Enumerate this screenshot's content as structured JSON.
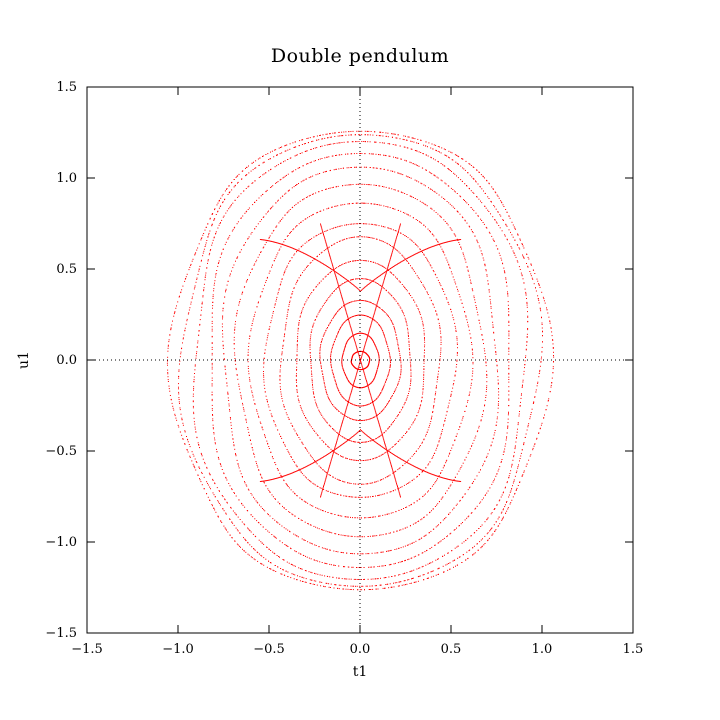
{
  "chart_data": {
    "type": "scatter",
    "title": "Double pendulum",
    "xlabel": "t1",
    "ylabel": "u1",
    "xlim": [
      -1.5,
      1.5
    ],
    "ylim": [
      -1.5,
      1.5
    ],
    "xticks": [
      -1.5,
      -1.0,
      -0.5,
      0.0,
      0.5,
      1.0,
      1.5
    ],
    "yticks": [
      -1.5,
      -1.0,
      -0.5,
      0.0,
      0.5,
      1.0,
      1.5
    ],
    "xtick_labels": [
      "−1.5",
      "−1.0",
      "−0.5",
      "0.0",
      "0.5",
      "1.0",
      "1.5"
    ],
    "ytick_labels": [
      "−1.5",
      "−1.0",
      "−0.5",
      "0.0",
      "0.5",
      "1.0",
      "1.5"
    ],
    "zero_axes": "dotted",
    "grid": false,
    "legend": "none",
    "point_color": "#ff0000",
    "series": [
      {
        "kind": "phase-orbits",
        "orbits": [
          {
            "a": 0.05,
            "b": 0.05
          },
          {
            "a": 0.1,
            "b": 0.15
          },
          {
            "a": 0.16,
            "b": 0.25
          },
          {
            "a": 0.22,
            "b": 0.33
          },
          {
            "a": 0.28,
            "b": 0.45
          },
          {
            "a": 0.36,
            "b": 0.55
          },
          {
            "a": 0.44,
            "b": 0.68
          },
          {
            "a": 0.52,
            "b": 0.8
          },
          {
            "a": 0.6,
            "b": 0.92
          },
          {
            "a": 0.68,
            "b": 1.03
          },
          {
            "a": 0.76,
            "b": 1.13
          },
          {
            "a": 0.84,
            "b": 1.21
          },
          {
            "a": 0.92,
            "b": 1.28
          },
          {
            "a": 0.98,
            "b": 1.32
          },
          {
            "a": 1.03,
            "b": 1.34
          }
        ],
        "separatrix": {
          "x_half_width": 0.55,
          "y_peak": 0.76,
          "y_center": 0.38
        }
      }
    ]
  }
}
